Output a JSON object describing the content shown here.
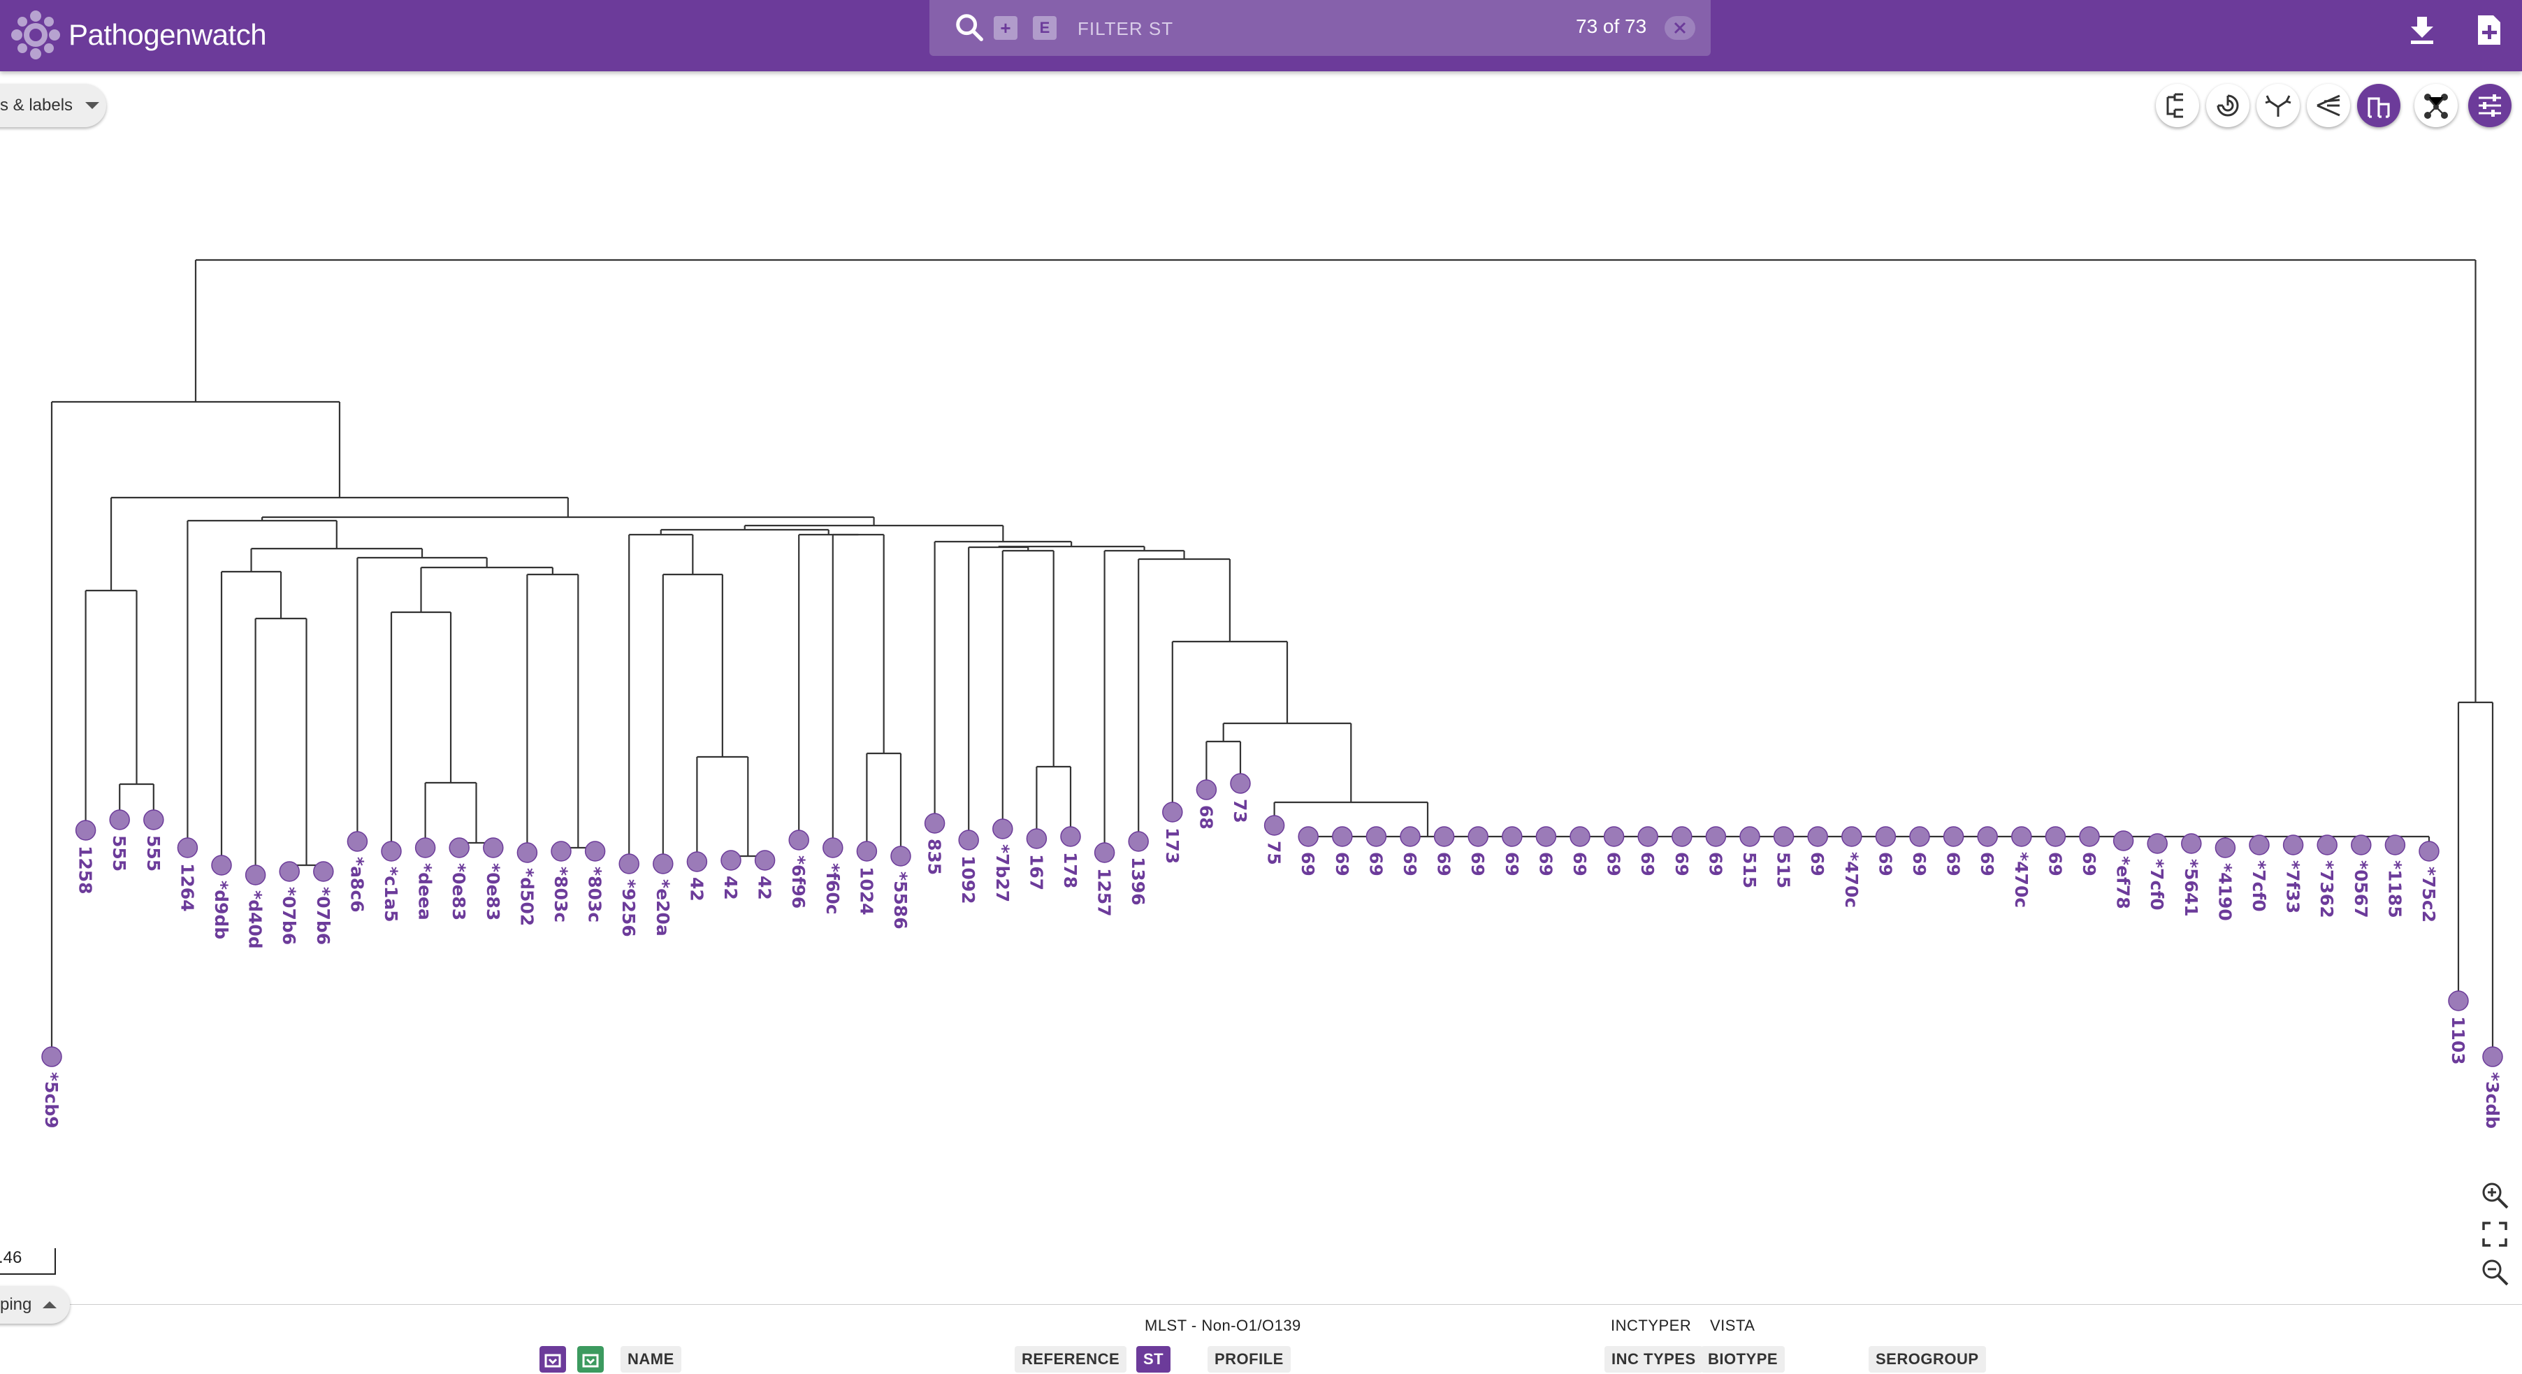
{
  "app": {
    "title": "Pathogenwatch"
  },
  "search": {
    "placeholder": "FILTER ST",
    "count": "73 of 73",
    "add_label": "+",
    "exact_label": "E"
  },
  "controls": {
    "nodes_labels": "s & labels",
    "grouping": "ping",
    "scale_label": ".46"
  },
  "tree_toolbar": [
    "rectangular",
    "circular",
    "radial",
    "diagonal",
    "hierarchical",
    "network",
    "settings"
  ],
  "columns": {
    "mlst_group": "MLST - Non-O1/O139",
    "inctyper_group": "INCTYPER",
    "vista_group": "VISTA",
    "buttons": {
      "name": "NAME",
      "reference": "REFERENCE",
      "st": "ST",
      "profile": "PROFILE",
      "inc_types": "INC TYPES",
      "biotype": "BIOTYPE",
      "serogroup": "SEROGROUP"
    }
  },
  "tree_labels": [
    "*5cb9",
    "1258",
    "555",
    "555",
    "1264",
    "*d9db",
    "*d40d",
    "*07b6",
    "*07b6",
    "*a8c6",
    "*c1a5",
    "*deea",
    "*0e83",
    "*0e83",
    "*d502",
    "*803c",
    "*803c",
    "*9256",
    "*e20a",
    "42",
    "42",
    "42",
    "*6f96",
    "*f60c",
    "1024",
    "*5586",
    "835",
    "1092",
    "*7b27",
    "167",
    "178",
    "1257",
    "1396",
    "173",
    "68",
    "73",
    "75",
    "69",
    "69",
    "69",
    "69",
    "69",
    "69",
    "69",
    "69",
    "69",
    "69",
    "69",
    "69",
    "69",
    "515",
    "515",
    "69",
    "*470c",
    "69",
    "69",
    "69",
    "69",
    "*470c",
    "69",
    "69",
    "*ef78",
    "*7cf0",
    "*5641",
    "*4190",
    "*7cf0",
    "*7f33",
    "*7362",
    "*0567",
    "*1185",
    "*75c2",
    "1103",
    "*3cdb"
  ],
  "colors": {
    "primary": "#6c3b9a",
    "node": "#9b7bb8",
    "search_bg": "#8661ab"
  },
  "icons": {
    "search": "search-icon",
    "download": "download-icon",
    "add_file": "add-file-icon",
    "zoom_in": "zoom-in-icon",
    "fit": "fit-icon",
    "zoom_out": "zoom-out-icon"
  }
}
